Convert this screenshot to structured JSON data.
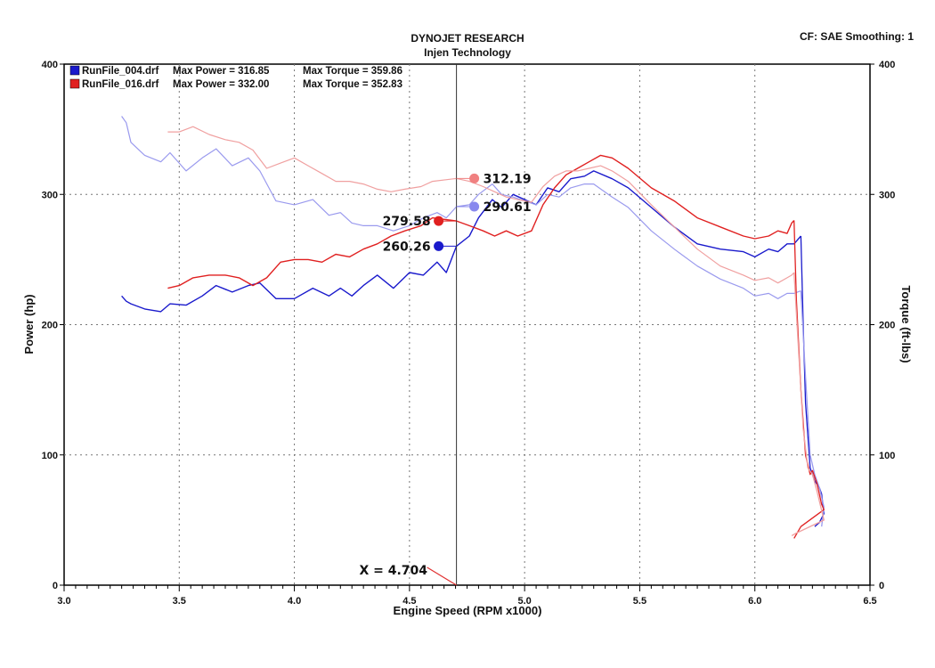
{
  "header": {
    "title": "DYNOJET RESEARCH",
    "subtitle": "Injen Technology",
    "settings": "CF: SAE  Smoothing: 1"
  },
  "legend": [
    {
      "file": "RunFile_004.drf",
      "max_power_text": "Max Power = 316.85",
      "max_torque_text": "Max Torque = 359.86",
      "color": "#1a1acc"
    },
    {
      "file": "RunFile_016.drf",
      "max_power_text": "Max Power = 332.00",
      "max_torque_text": "Max Torque = 352.83",
      "color": "#e02020"
    }
  ],
  "cursor": {
    "label": "X = 4.704",
    "x": 4.704
  },
  "chart_data": {
    "type": "line",
    "xlabel": "Engine Speed (RPM x1000)",
    "ylabel": "Power (hp)",
    "y2label": "Torque (ft-lbs)",
    "xlim": [
      3.0,
      6.5
    ],
    "ylim": [
      0,
      400
    ],
    "y2lim": [
      0,
      400
    ],
    "x_ticks": [
      "3.0",
      "3.5",
      "4.0",
      "4.5",
      "5.0",
      "5.5",
      "6.0",
      "6.5"
    ],
    "y_ticks": [
      "0",
      "100",
      "200",
      "300",
      "400"
    ],
    "y2_ticks": [
      "0",
      "100",
      "200",
      "300",
      "400"
    ],
    "grid": true,
    "legend_position": "top-left",
    "series": [
      {
        "name": "RunFile_004.drf Power",
        "color": "#1a1acc",
        "width": 1.4,
        "points": [
          [
            3.25,
            222
          ],
          [
            3.27,
            218
          ],
          [
            3.29,
            216
          ],
          [
            3.35,
            212
          ],
          [
            3.42,
            210
          ],
          [
            3.46,
            216
          ],
          [
            3.53,
            215
          ],
          [
            3.6,
            222
          ],
          [
            3.66,
            230
          ],
          [
            3.73,
            225
          ],
          [
            3.8,
            230
          ],
          [
            3.85,
            232
          ],
          [
            3.92,
            220
          ],
          [
            4.0,
            220
          ],
          [
            4.08,
            228
          ],
          [
            4.15,
            222
          ],
          [
            4.2,
            228
          ],
          [
            4.25,
            222
          ],
          [
            4.3,
            230
          ],
          [
            4.36,
            238
          ],
          [
            4.43,
            228
          ],
          [
            4.5,
            240
          ],
          [
            4.56,
            238
          ],
          [
            4.62,
            248
          ],
          [
            4.66,
            240
          ],
          [
            4.704,
            260.26
          ],
          [
            4.76,
            268
          ],
          [
            4.8,
            282
          ],
          [
            4.86,
            296
          ],
          [
            4.9,
            290
          ],
          [
            4.95,
            300
          ],
          [
            5.05,
            292
          ],
          [
            5.1,
            305
          ],
          [
            5.15,
            302
          ],
          [
            5.2,
            312
          ],
          [
            5.26,
            314
          ],
          [
            5.3,
            318
          ],
          [
            5.38,
            312
          ],
          [
            5.45,
            305
          ],
          [
            5.55,
            290
          ],
          [
            5.65,
            275
          ],
          [
            5.75,
            262
          ],
          [
            5.85,
            258
          ],
          [
            5.95,
            256
          ],
          [
            6.0,
            252
          ],
          [
            6.06,
            258
          ],
          [
            6.1,
            256
          ],
          [
            6.14,
            262
          ],
          [
            6.17,
            262
          ],
          [
            6.2,
            268
          ]
        ]
      },
      {
        "name": "RunFile_004.drf Torque",
        "color": "#9a9aee",
        "width": 1.2,
        "points": [
          [
            3.25,
            360
          ],
          [
            3.27,
            355
          ],
          [
            3.29,
            340
          ],
          [
            3.35,
            330
          ],
          [
            3.42,
            325
          ],
          [
            3.46,
            332
          ],
          [
            3.53,
            318
          ],
          [
            3.6,
            328
          ],
          [
            3.66,
            335
          ],
          [
            3.73,
            322
          ],
          [
            3.8,
            328
          ],
          [
            3.85,
            318
          ],
          [
            3.92,
            295
          ],
          [
            4.0,
            292
          ],
          [
            4.08,
            296
          ],
          [
            4.15,
            284
          ],
          [
            4.2,
            286
          ],
          [
            4.25,
            278
          ],
          [
            4.3,
            276
          ],
          [
            4.36,
            276
          ],
          [
            4.43,
            272
          ],
          [
            4.5,
            276
          ],
          [
            4.56,
            282
          ],
          [
            4.62,
            286
          ],
          [
            4.66,
            282
          ],
          [
            4.704,
            290.61
          ],
          [
            4.76,
            292
          ],
          [
            4.8,
            300
          ],
          [
            4.86,
            308
          ],
          [
            4.9,
            300
          ],
          [
            4.95,
            298
          ],
          [
            5.05,
            292
          ],
          [
            5.1,
            300
          ],
          [
            5.15,
            298
          ],
          [
            5.2,
            305
          ],
          [
            5.26,
            308
          ],
          [
            5.3,
            308
          ],
          [
            5.38,
            298
          ],
          [
            5.45,
            290
          ],
          [
            5.55,
            272
          ],
          [
            5.65,
            258
          ],
          [
            5.75,
            245
          ],
          [
            5.85,
            235
          ],
          [
            5.95,
            228
          ],
          [
            6.0,
            222
          ],
          [
            6.06,
            224
          ],
          [
            6.1,
            220
          ],
          [
            6.14,
            224
          ],
          [
            6.17,
            224
          ],
          [
            6.2,
            226
          ]
        ]
      },
      {
        "name": "RunFile_016.drf Power",
        "color": "#e02020",
        "width": 1.4,
        "points": [
          [
            3.45,
            228
          ],
          [
            3.5,
            230
          ],
          [
            3.56,
            236
          ],
          [
            3.63,
            238
          ],
          [
            3.7,
            238
          ],
          [
            3.76,
            236
          ],
          [
            3.82,
            230
          ],
          [
            3.88,
            236
          ],
          [
            3.94,
            248
          ],
          [
            4.0,
            250
          ],
          [
            4.06,
            250
          ],
          [
            4.12,
            248
          ],
          [
            4.18,
            254
          ],
          [
            4.24,
            252
          ],
          [
            4.3,
            258
          ],
          [
            4.36,
            262
          ],
          [
            4.42,
            268
          ],
          [
            4.48,
            272
          ],
          [
            4.55,
            276
          ],
          [
            4.6,
            282
          ],
          [
            4.704,
            279.58
          ],
          [
            4.76,
            276
          ],
          [
            4.82,
            272
          ],
          [
            4.87,
            268
          ],
          [
            4.92,
            272
          ],
          [
            4.97,
            268
          ],
          [
            5.03,
            272
          ],
          [
            5.08,
            292
          ],
          [
            5.13,
            305
          ],
          [
            5.18,
            315
          ],
          [
            5.23,
            320
          ],
          [
            5.28,
            325
          ],
          [
            5.33,
            330
          ],
          [
            5.38,
            328
          ],
          [
            5.45,
            320
          ],
          [
            5.55,
            305
          ],
          [
            5.65,
            295
          ],
          [
            5.75,
            282
          ],
          [
            5.85,
            275
          ],
          [
            5.95,
            268
          ],
          [
            6.0,
            266
          ],
          [
            6.06,
            268
          ],
          [
            6.1,
            272
          ],
          [
            6.14,
            270
          ],
          [
            6.16,
            278
          ],
          [
            6.17,
            280
          ]
        ]
      },
      {
        "name": "RunFile_016.drf Torque",
        "color": "#f0a0a0",
        "width": 1.2,
        "points": [
          [
            3.45,
            348
          ],
          [
            3.5,
            348
          ],
          [
            3.56,
            352
          ],
          [
            3.63,
            346
          ],
          [
            3.7,
            342
          ],
          [
            3.76,
            340
          ],
          [
            3.82,
            334
          ],
          [
            3.88,
            320
          ],
          [
            3.94,
            324
          ],
          [
            4.0,
            328
          ],
          [
            4.06,
            322
          ],
          [
            4.12,
            316
          ],
          [
            4.18,
            310
          ],
          [
            4.24,
            310
          ],
          [
            4.3,
            308
          ],
          [
            4.36,
            304
          ],
          [
            4.42,
            302
          ],
          [
            4.48,
            304
          ],
          [
            4.55,
            306
          ],
          [
            4.6,
            310
          ],
          [
            4.704,
            312.19
          ],
          [
            4.76,
            310
          ],
          [
            4.82,
            306
          ],
          [
            4.87,
            302
          ],
          [
            4.92,
            298
          ],
          [
            4.97,
            296
          ],
          [
            5.03,
            294
          ],
          [
            5.08,
            306
          ],
          [
            5.13,
            314
          ],
          [
            5.18,
            318
          ],
          [
            5.23,
            318
          ],
          [
            5.28,
            320
          ],
          [
            5.33,
            322
          ],
          [
            5.38,
            318
          ],
          [
            5.45,
            310
          ],
          [
            5.55,
            292
          ],
          [
            5.65,
            275
          ],
          [
            5.75,
            258
          ],
          [
            5.85,
            245
          ],
          [
            5.95,
            238
          ],
          [
            6.0,
            234
          ],
          [
            6.06,
            236
          ],
          [
            6.1,
            232
          ],
          [
            6.14,
            236
          ],
          [
            6.16,
            238
          ],
          [
            6.17,
            240
          ]
        ]
      }
    ],
    "dropoff": [
      {
        "color": "#1a1acc",
        "points": [
          [
            6.2,
            268
          ],
          [
            6.21,
            200
          ],
          [
            6.22,
            140
          ],
          [
            6.24,
            90
          ],
          [
            6.26,
            80
          ],
          [
            6.28,
            75
          ],
          [
            6.29,
            70
          ],
          [
            6.3,
            55
          ],
          [
            6.28,
            48
          ],
          [
            6.26,
            45
          ]
        ]
      },
      {
        "color": "#9a9aee",
        "points": [
          [
            6.2,
            226
          ],
          [
            6.22,
            160
          ],
          [
            6.24,
            100
          ],
          [
            6.26,
            85
          ],
          [
            6.28,
            75
          ],
          [
            6.3,
            60
          ],
          [
            6.29,
            45
          ]
        ]
      },
      {
        "color": "#e02020",
        "points": [
          [
            6.17,
            280
          ],
          [
            6.18,
            220
          ],
          [
            6.2,
            150
          ],
          [
            6.22,
            100
          ],
          [
            6.24,
            85
          ],
          [
            6.25,
            88
          ],
          [
            6.27,
            78
          ],
          [
            6.29,
            62
          ],
          [
            6.3,
            58
          ],
          [
            6.2,
            45
          ],
          [
            6.17,
            36
          ]
        ]
      },
      {
        "color": "#f0a0a0",
        "points": [
          [
            6.17,
            240
          ],
          [
            6.19,
            180
          ],
          [
            6.21,
            120
          ],
          [
            6.23,
            90
          ],
          [
            6.25,
            85
          ],
          [
            6.27,
            72
          ],
          [
            6.3,
            50
          ],
          [
            6.18,
            40
          ],
          [
            6.16,
            38
          ]
        ]
      }
    ],
    "markers": [
      {
        "series": "RunFile_004.drf Power",
        "x": 4.704,
        "y": 260.26,
        "label": "260.26",
        "color": "#1a1acc",
        "label_side": "left"
      },
      {
        "series": "RunFile_016.drf Power",
        "x": 4.704,
        "y": 279.58,
        "label": "279.58",
        "color": "#e02020",
        "label_side": "left"
      },
      {
        "series": "RunFile_004.drf Torque",
        "x": 4.704,
        "y": 290.61,
        "label": "290.61",
        "color": "#8888ee",
        "label_side": "right"
      },
      {
        "series": "RunFile_016.drf Torque",
        "x": 4.704,
        "y": 312.19,
        "label": "312.19",
        "color": "#f08080",
        "label_side": "right"
      }
    ]
  }
}
